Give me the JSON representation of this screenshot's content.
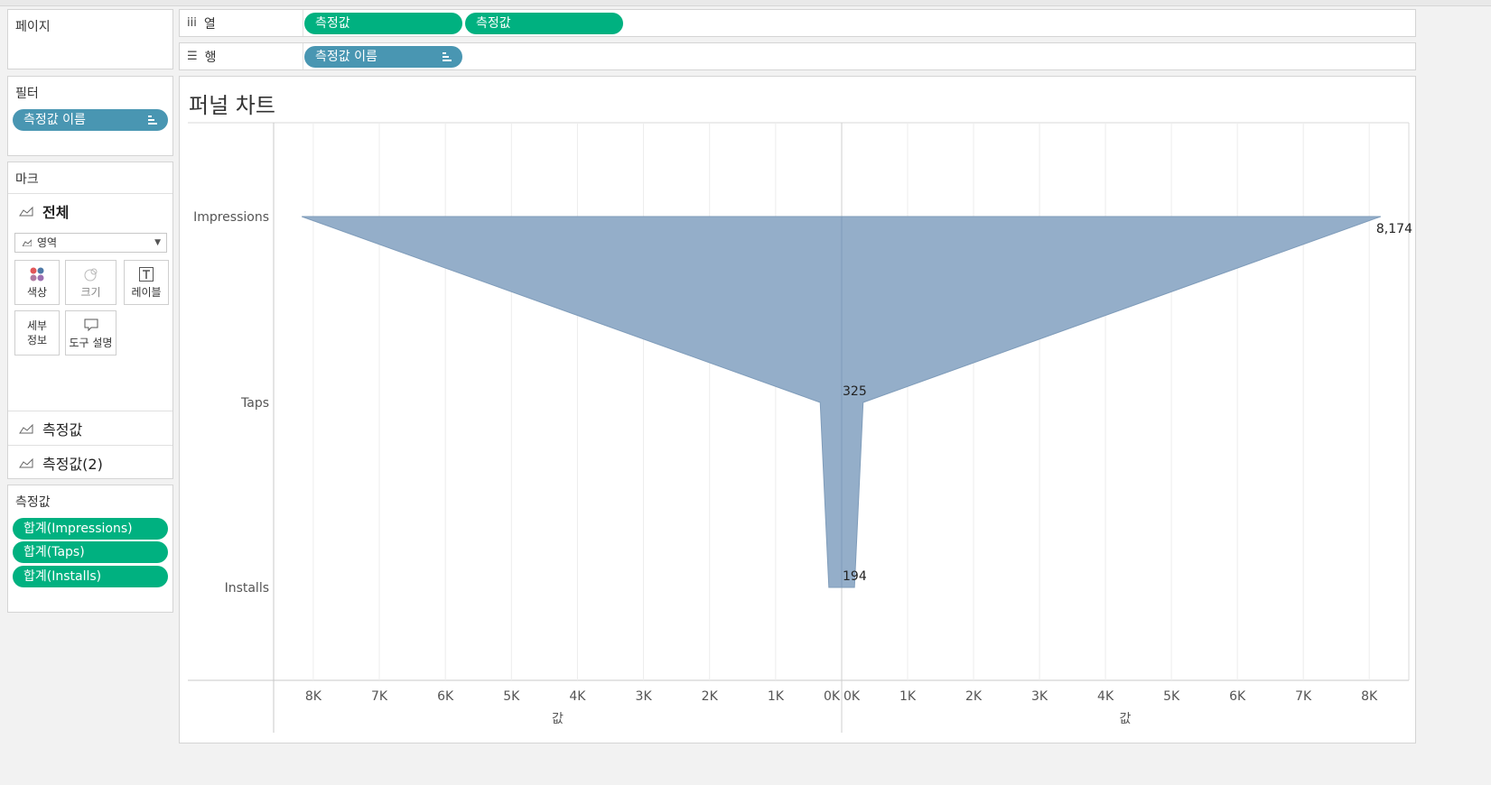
{
  "left_panel": {
    "pages_title": "페이지",
    "filters_title": "필터",
    "filter_pill": "측정값 이름",
    "marks_title": "마크",
    "marks_all": "전체",
    "mark_type": "영역",
    "mark_buttons": {
      "color": "색상",
      "size": "크기",
      "label": "레이블",
      "detail_line1": "세부",
      "detail_line2": "정보",
      "tooltip": "도구 설명"
    },
    "mark_layers": [
      "측정값",
      "측정값(2)"
    ],
    "measures_title": "측정값",
    "measure_pills": [
      "합계(Impressions)",
      "합계(Taps)",
      "합계(Installs)"
    ]
  },
  "shelves": {
    "columns_label": "열",
    "columns_pills": [
      "측정값",
      "측정값"
    ],
    "rows_label": "행",
    "rows_pills": [
      "측정값 이름"
    ]
  },
  "colors": {
    "area_fill": "#94aec9",
    "area_stroke": "#7f9cba",
    "pill_green": "#00b180",
    "pill_blue": "#4996b2"
  },
  "chart_data": {
    "type": "area",
    "title": "퍼널 차트",
    "categories": [
      "Impressions",
      "Taps",
      "Installs"
    ],
    "series": [
      {
        "values": [
          8174,
          325,
          194
        ]
      }
    ],
    "data_labels": [
      "8,174",
      "325",
      "194"
    ],
    "left_axis": {
      "ticks": [
        "8K",
        "7K",
        "6K",
        "5K",
        "4K",
        "3K",
        "2K",
        "1K",
        "0K"
      ],
      "label": "값",
      "reversed": true,
      "range": [
        0,
        8600
      ]
    },
    "right_axis": {
      "ticks": [
        "0K",
        "1K",
        "2K",
        "3K",
        "4K",
        "5K",
        "6K",
        "7K",
        "8K"
      ],
      "label": "값",
      "range": [
        0,
        8600
      ]
    },
    "grid": true
  }
}
